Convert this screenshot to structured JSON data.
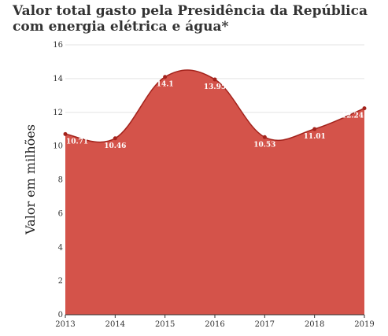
{
  "chart_data": {
    "type": "area",
    "title": "Valor total gasto pela Presidência da República com energia elétrica e água*",
    "xlabel": "",
    "ylabel": "Valor em milhões",
    "categories": [
      "2013",
      "2014",
      "2015",
      "2016",
      "2017",
      "2018",
      "2019"
    ],
    "values": [
      10.71,
      10.46,
      14.1,
      13.95,
      10.53,
      11.01,
      12.24
    ],
    "data_labels": [
      "10.71",
      "10.46",
      "14.1",
      "13.95",
      "10.53",
      "11.01",
      "12.24"
    ],
    "ylim": [
      0,
      16
    ],
    "yticks": [
      "0",
      "2",
      "4",
      "6",
      "8",
      "10",
      "12",
      "14",
      "16"
    ],
    "grid": true,
    "smooth": true,
    "legend": "none",
    "colors": {
      "fill": "#d4534a",
      "line": "#a3231c",
      "marker": "#a3231c",
      "grid": "#e3e3e3"
    }
  }
}
